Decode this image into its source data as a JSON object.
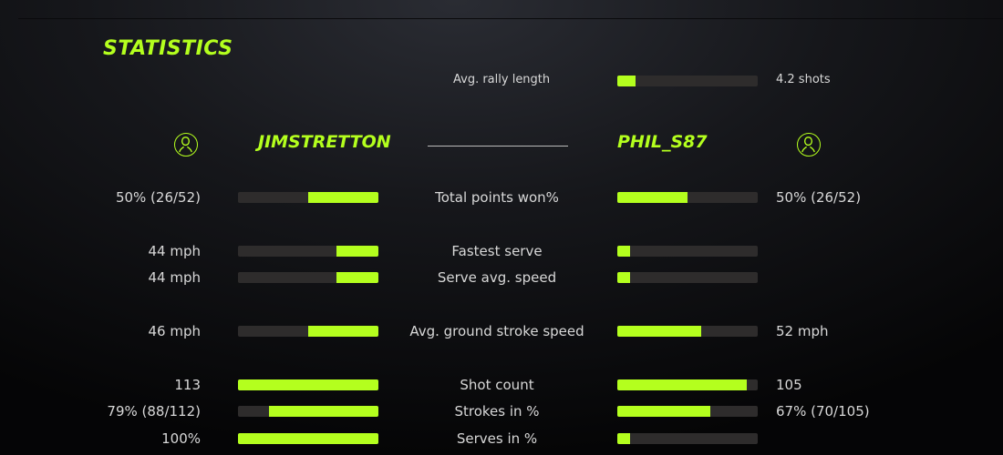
{
  "title": "STATISTICS",
  "accent": "#b4ff1e",
  "rally": {
    "label": "Avg. rally length",
    "value": "4.2 shots",
    "fill": 13
  },
  "players": {
    "left": {
      "name": "JIMSTRETTON",
      "icon": "user-icon"
    },
    "right": {
      "name": "PHIL_S87",
      "icon": "user-icon"
    }
  },
  "rows": [
    {
      "label": "Total points won%",
      "left": "50% (26/52)",
      "right": "50% (26/52)",
      "left_fill": 50,
      "right_fill": 50
    },
    {
      "label": "Fastest serve",
      "left": "44 mph",
      "right": "",
      "left_fill": 30,
      "right_fill": 9
    },
    {
      "label": "Serve avg. speed",
      "left": "44 mph",
      "right": "",
      "left_fill": 30,
      "right_fill": 9
    },
    {
      "label": "Avg. ground stroke speed",
      "left": "46 mph",
      "right": "52 mph",
      "left_fill": 50,
      "right_fill": 60
    },
    {
      "label": "Shot count",
      "left": "113",
      "right": "105",
      "left_fill": 100,
      "right_fill": 92
    },
    {
      "label": "Strokes in %",
      "left": "79% (88/112)",
      "right": "67% (70/105)",
      "left_fill": 78,
      "right_fill": 66
    },
    {
      "label": "Serves in %",
      "left": "100%",
      "right": "",
      "left_fill": 100,
      "right_fill": 9
    }
  ]
}
